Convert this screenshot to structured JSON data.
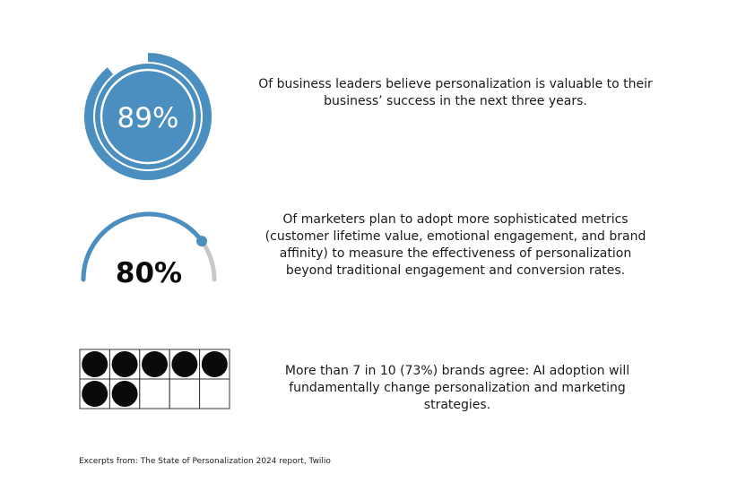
{
  "colors": {
    "accent": "#4a8fc0",
    "track": "#c8c8c8",
    "dot": "#0a0a0a",
    "text": "#1a1a1a"
  },
  "stats": [
    {
      "value_label": "89%",
      "text": "Of business leaders believe personalization is valuable to their business’ success in  the next three years."
    },
    {
      "value_label": "80%",
      "text": "Of marketers plan to adopt more sophisticated metrics (customer lifetime value, emotional engagement, and brand affinity) to measure the effectiveness of personalization beyond traditional engagement and conversion rates."
    },
    {
      "text": "More than 7 in 10 (73%) brands agree: AI adoption will fundamentally change personalization and marketing strategies."
    }
  ],
  "source": "Excerpts from: The State of Personalization 2024 report, Twilio",
  "chart_data": [
    {
      "type": "pie",
      "style": "donut-progress",
      "value": 89,
      "max": 100,
      "label": "89%"
    },
    {
      "type": "pie",
      "style": "semicircle-gauge",
      "value": 80,
      "max": 100,
      "label": "80%"
    },
    {
      "type": "table",
      "style": "dot-grid",
      "filled": 7,
      "total": 10,
      "columns": 5,
      "rows": 2
    }
  ]
}
